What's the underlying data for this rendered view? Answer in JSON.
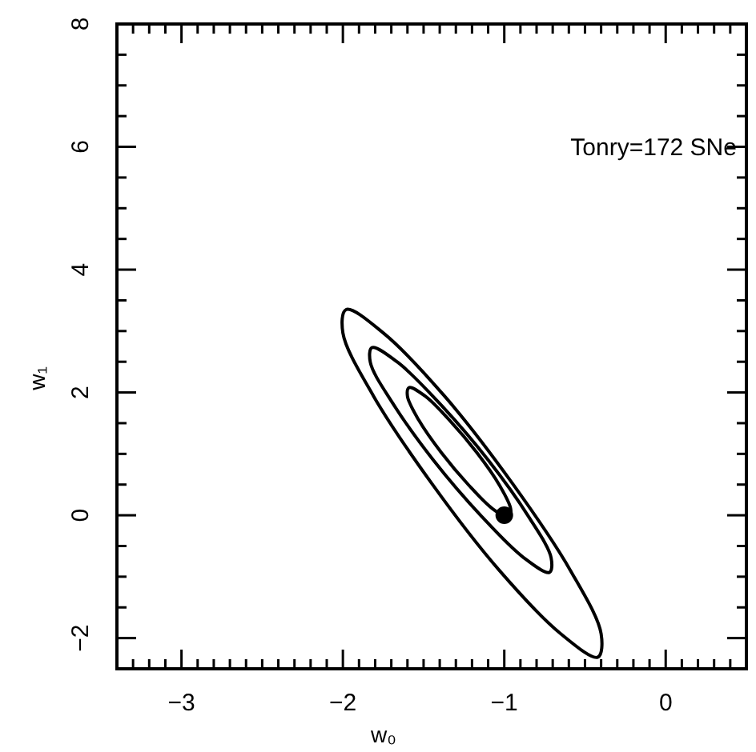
{
  "chart_data": {
    "type": "scatter",
    "xlabel": "w₀",
    "ylabel": "w₁",
    "xlim": [
      -3.4,
      0.5
    ],
    "ylim": [
      -2.5,
      8
    ],
    "xticks": [
      {
        "value": -3.4,
        "label": null
      },
      {
        "value": -3.3,
        "label": null
      },
      {
        "value": -3.2,
        "label": null
      },
      {
        "value": -3.1,
        "label": null
      },
      -3,
      {
        "value": -2.9,
        "label": null
      },
      {
        "value": -2.8,
        "label": null
      },
      {
        "value": -2.7,
        "label": null
      },
      {
        "value": -2.6,
        "label": null
      },
      {
        "value": -2.5,
        "label": null
      },
      {
        "value": -2.4,
        "label": null
      },
      {
        "value": -2.3,
        "label": null
      },
      {
        "value": -2.2,
        "label": null
      },
      {
        "value": -2.1,
        "label": null
      },
      -2,
      {
        "value": -1.9,
        "label": null
      },
      {
        "value": -1.8,
        "label": null
      },
      {
        "value": -1.7,
        "label": null
      },
      {
        "value": -1.6,
        "label": null
      },
      {
        "value": -1.5,
        "label": null
      },
      {
        "value": -1.4,
        "label": null
      },
      {
        "value": -1.3,
        "label": null
      },
      {
        "value": -1.2,
        "label": null
      },
      {
        "value": -1.1,
        "label": null
      },
      -1,
      {
        "value": -0.9,
        "label": null
      },
      {
        "value": -0.8,
        "label": null
      },
      {
        "value": -0.7,
        "label": null
      },
      {
        "value": -0.6,
        "label": null
      },
      {
        "value": -0.5,
        "label": null
      },
      {
        "value": -0.4,
        "label": null
      },
      {
        "value": -0.3,
        "label": null
      },
      {
        "value": -0.2,
        "label": null
      },
      {
        "value": -0.1,
        "label": null
      },
      0,
      {
        "value": 0.1,
        "label": null
      },
      {
        "value": 0.2,
        "label": null
      },
      {
        "value": 0.3,
        "label": null
      },
      {
        "value": 0.4,
        "label": null
      }
    ],
    "yticks": [
      -2,
      {
        "value": -1.5,
        "label": null
      },
      {
        "value": -1,
        "label": null
      },
      {
        "value": -0.5,
        "label": null
      },
      0,
      {
        "value": 0.5,
        "label": null
      },
      {
        "value": 1,
        "label": null
      },
      {
        "value": 1.5,
        "label": null
      },
      2,
      {
        "value": 2.5,
        "label": null
      },
      {
        "value": 3,
        "label": null
      },
      {
        "value": 3.5,
        "label": null
      },
      4,
      {
        "value": 4.5,
        "label": null
      },
      {
        "value": 5,
        "label": null
      },
      {
        "value": 5.5,
        "label": null
      },
      6,
      {
        "value": 6.5,
        "label": null
      },
      {
        "value": 7,
        "label": null
      },
      {
        "value": 7.5,
        "label": null
      },
      8
    ],
    "grid": false,
    "marker": "circle",
    "annotations": [
      "Tonry=172 SNe"
    ],
    "series": [
      {
        "color": "#000000",
        "x": [
          -1
        ],
        "values": [
          0
        ]
      }
    ]
  }
}
